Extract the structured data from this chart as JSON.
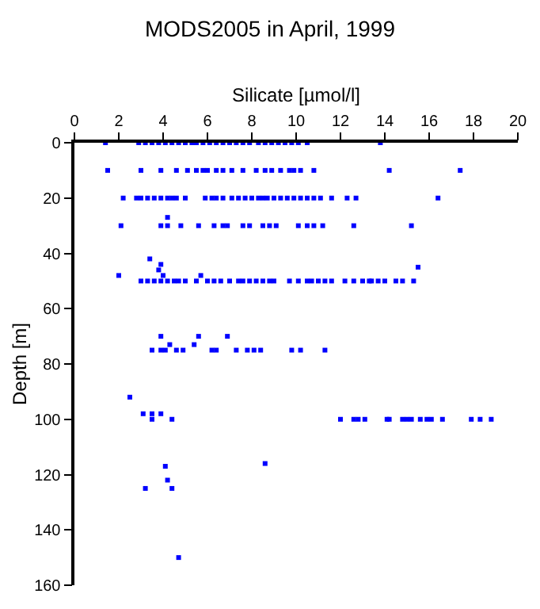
{
  "chart_data": {
    "type": "scatter",
    "title": "MODS2005 in April, 1999",
    "xlabel": "Silicate [µmol/l]",
    "ylabel": "Depth [m]",
    "xlim": [
      0,
      20
    ],
    "xticks": [
      0,
      2,
      4,
      6,
      8,
      10,
      12,
      14,
      16,
      18,
      20
    ],
    "ylim": [
      160,
      0
    ],
    "yticks": [
      0,
      20,
      40,
      60,
      80,
      100,
      120,
      140,
      160
    ],
    "marker": "square",
    "series": [
      {
        "color": "#0000ff",
        "x": [
          1.4,
          2.9,
          3.2,
          3.5,
          3.8,
          4.1,
          4.4,
          4.7,
          5.0,
          5.3,
          5.5,
          5.8,
          6.1,
          6.4,
          6.7,
          7.0,
          7.3,
          7.6,
          7.9,
          8.3,
          8.6,
          8.9,
          9.2,
          9.5,
          9.8,
          10.1,
          10.5,
          13.8,
          1.5,
          3.0,
          3.9,
          4.6,
          5.1,
          5.5,
          5.8,
          6.0,
          6.4,
          6.7,
          7.1,
          7.6,
          8.2,
          8.6,
          8.9,
          9.3,
          9.7,
          9.9,
          10.2,
          10.8,
          14.2,
          17.4,
          2.2,
          2.8,
          3.0,
          3.3,
          3.6,
          3.9,
          4.2,
          4.4,
          4.6,
          5.0,
          5.9,
          6.2,
          6.4,
          6.7,
          7.1,
          7.4,
          7.7,
          8.0,
          8.3,
          8.5,
          8.7,
          9.0,
          9.3,
          9.6,
          9.9,
          10.2,
          10.5,
          10.8,
          11.1,
          11.6,
          12.3,
          12.7,
          16.4,
          4.2,
          2.1,
          3.9,
          4.2,
          4.8,
          5.6,
          6.3,
          6.7,
          6.9,
          7.6,
          7.9,
          8.5,
          8.8,
          9.1,
          10.1,
          10.5,
          10.8,
          11.2,
          12.6,
          15.2,
          3.4,
          3.9,
          15.5,
          3.8,
          2.0,
          4.0,
          5.7,
          3.0,
          3.3,
          3.6,
          3.9,
          4.2,
          4.5,
          4.7,
          5.0,
          5.5,
          6.0,
          6.3,
          6.6,
          7.0,
          7.4,
          7.6,
          7.9,
          8.2,
          8.5,
          8.8,
          9.0,
          9.7,
          10.1,
          10.5,
          10.7,
          11.0,
          11.3,
          11.6,
          12.2,
          12.6,
          13.0,
          13.3,
          13.4,
          13.7,
          14.0,
          14.5,
          14.8,
          15.3,
          3.9,
          5.6,
          6.9,
          4.3,
          5.4,
          3.5,
          3.9,
          4.1,
          4.6,
          4.9,
          6.2,
          6.4,
          7.3,
          7.8,
          8.1,
          8.4,
          9.8,
          10.2,
          11.3,
          2.5,
          3.1,
          3.5,
          3.9,
          3.5,
          4.4,
          12.0,
          12.6,
          12.8,
          13.1,
          14.1,
          14.2,
          14.8,
          15.0,
          15.2,
          15.6,
          15.9,
          16.1,
          16.6,
          17.9,
          18.3,
          18.8,
          8.6,
          4.1,
          4.2,
          3.2,
          4.4,
          4.7
        ],
        "values": [
          0,
          0,
          0,
          0,
          0,
          0,
          0,
          0,
          0,
          0,
          0,
          0,
          0,
          0,
          0,
          0,
          0,
          0,
          0,
          0,
          0,
          0,
          0,
          0,
          0,
          0,
          0,
          0,
          10,
          10,
          10,
          10,
          10,
          10,
          10,
          10,
          10,
          10,
          10,
          10,
          10,
          10,
          10,
          10,
          10,
          10,
          10,
          10,
          10,
          10,
          20,
          20,
          20,
          20,
          20,
          20,
          20,
          20,
          20,
          20,
          20,
          20,
          20,
          20,
          20,
          20,
          20,
          20,
          20,
          20,
          20,
          20,
          20,
          20,
          20,
          20,
          20,
          20,
          20,
          20,
          20,
          20,
          20,
          27,
          30,
          30,
          30,
          30,
          30,
          30,
          30,
          30,
          30,
          30,
          30,
          30,
          30,
          30,
          30,
          30,
          30,
          30,
          30,
          42,
          44,
          45,
          46,
          48,
          48,
          48,
          50,
          50,
          50,
          50,
          50,
          50,
          50,
          50,
          50,
          50,
          50,
          50,
          50,
          50,
          50,
          50,
          50,
          50,
          50,
          50,
          50,
          50,
          50,
          50,
          50,
          50,
          50,
          50,
          50,
          50,
          50,
          50,
          50,
          50,
          50,
          50,
          50,
          70,
          70,
          70,
          73,
          73,
          75,
          75,
          75,
          75,
          75,
          75,
          75,
          75,
          75,
          75,
          75,
          75,
          75,
          75,
          92,
          98,
          98,
          98,
          100,
          100,
          100,
          100,
          100,
          100,
          100,
          100,
          100,
          100,
          100,
          100,
          100,
          100,
          100,
          100,
          100,
          100,
          116,
          117,
          122,
          125,
          125,
          150
        ]
      }
    ]
  }
}
